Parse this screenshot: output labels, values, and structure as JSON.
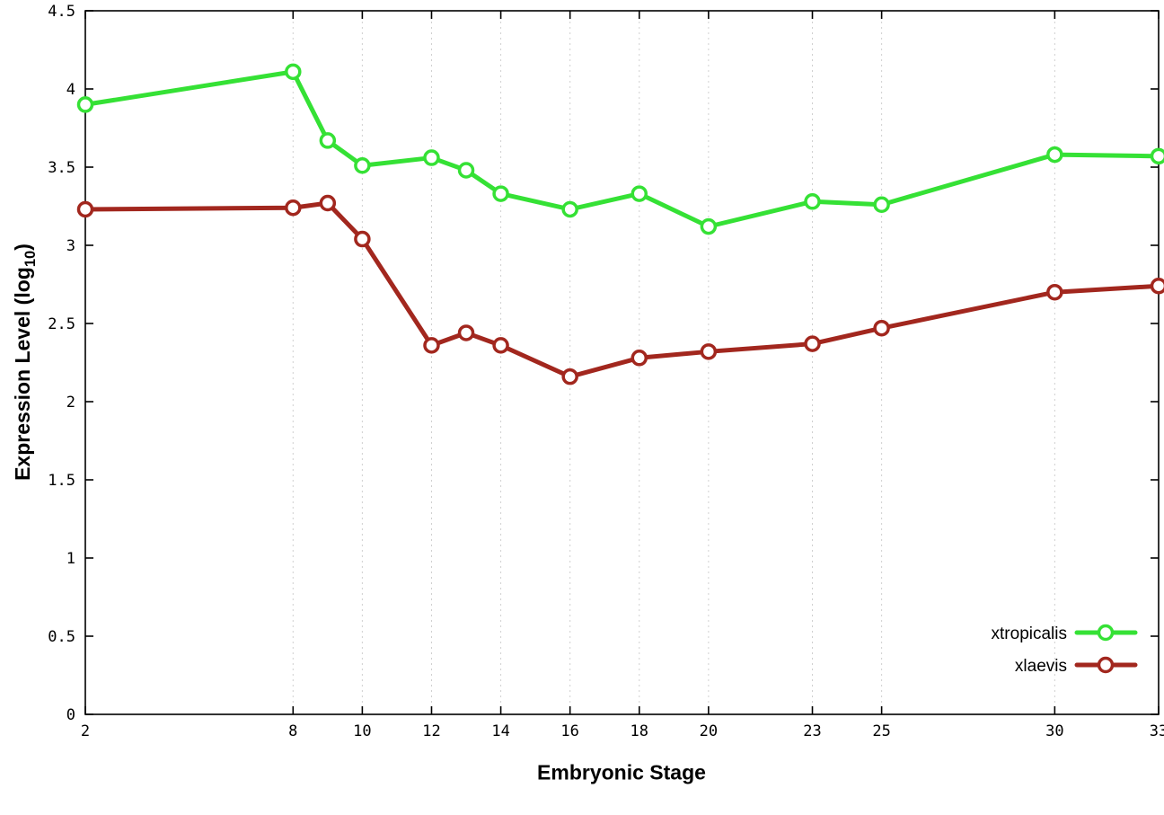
{
  "chart_data": {
    "type": "line",
    "title": "",
    "xlabel": "Embryonic Stage",
    "ylabel": "Expression Level (log10)",
    "ylabel_parts": {
      "main": "Expression Level (log",
      "sub": "10",
      "end": ")"
    },
    "xlim": [
      2,
      33
    ],
    "ylim": [
      0,
      4.5
    ],
    "x_ticks": [
      2,
      8,
      10,
      12,
      14,
      16,
      18,
      20,
      23,
      25,
      30,
      33
    ],
    "x_tick_labels": [
      "2",
      "8",
      "10",
      "12",
      "14",
      "16",
      "18",
      "20",
      "23",
      "25",
      "30",
      "33"
    ],
    "y_ticks": [
      0,
      0.5,
      1,
      1.5,
      2,
      2.5,
      3,
      3.5,
      4,
      4.5
    ],
    "y_tick_labels": [
      "0",
      "0.5",
      "1",
      "1.5",
      "2",
      "2.5",
      "3",
      "3.5",
      "4",
      "4.5"
    ],
    "grid": "vertical-dotted",
    "legend_position": "bottom-right-inside",
    "x": [
      2,
      8,
      9,
      10,
      12,
      13,
      14,
      16,
      18,
      20,
      23,
      25,
      30,
      33
    ],
    "series": [
      {
        "name": "xtropicalis",
        "color": "#35e135",
        "values": [
          3.9,
          4.11,
          3.67,
          3.51,
          3.56,
          3.48,
          3.33,
          3.23,
          3.33,
          3.12,
          3.28,
          3.26,
          3.58,
          3.57
        ]
      },
      {
        "name": "xlaevis",
        "color": "#a2271e",
        "values": [
          3.23,
          3.24,
          3.27,
          3.04,
          2.36,
          2.44,
          2.36,
          2.16,
          2.28,
          2.32,
          2.37,
          2.47,
          2.7,
          2.74
        ]
      }
    ]
  }
}
